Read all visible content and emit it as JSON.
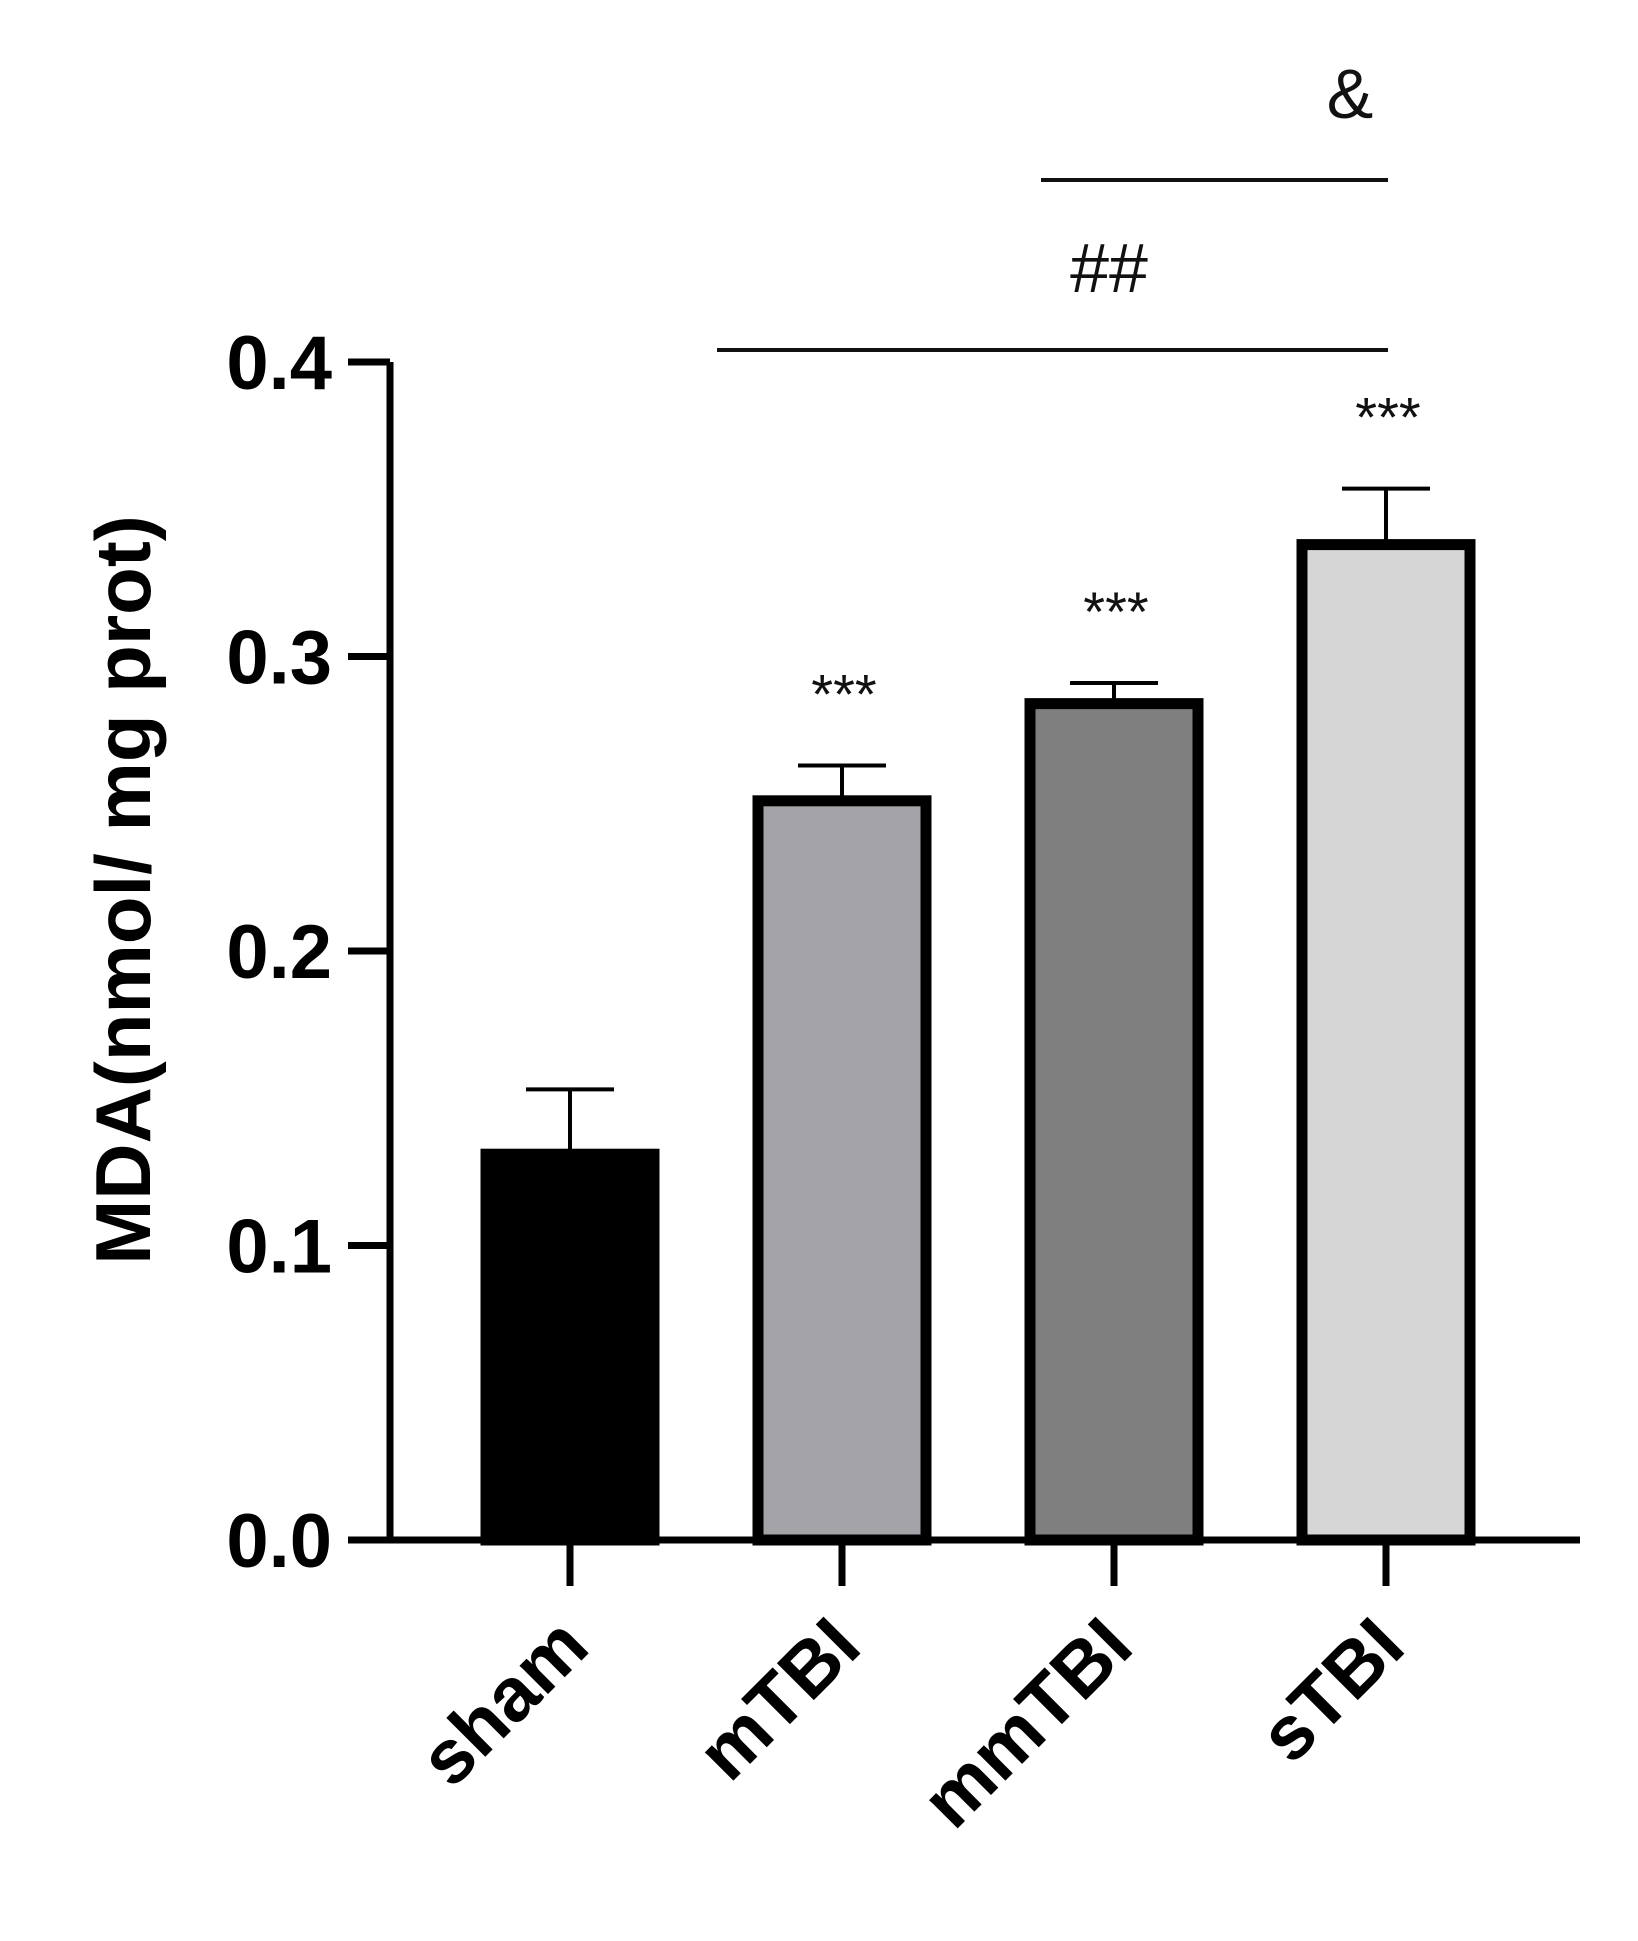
{
  "chart_data": {
    "type": "bar",
    "categories": [
      "sham",
      "mTBI",
      "mmTBI",
      "sTBI"
    ],
    "values": [
      0.131,
      0.251,
      0.284,
      0.338
    ],
    "errors": [
      0.022,
      0.012,
      0.007,
      0.019
    ],
    "bar_colors": [
      "#000000",
      "#a4a4a8",
      "#7f7f7f",
      "#d6d6d6"
    ],
    "xlabel": "",
    "ylabel": "MDA(nmol/ mg prot)",
    "ylim": [
      0,
      0.4
    ],
    "yticks": [
      0.0,
      0.1,
      0.2,
      0.3,
      0.4
    ],
    "ytick_labels": [
      "0.0",
      "0.1",
      "0.2",
      "0.3",
      "0.4"
    ],
    "bar_annotations": [
      "",
      "***",
      "***",
      "***"
    ],
    "comparisons": [
      {
        "from": "mTBI",
        "to": "sTBI",
        "label": "##"
      },
      {
        "from": "mmTBI",
        "to": "sTBI",
        "label": "&"
      }
    ],
    "grid": false,
    "legend": "none"
  }
}
